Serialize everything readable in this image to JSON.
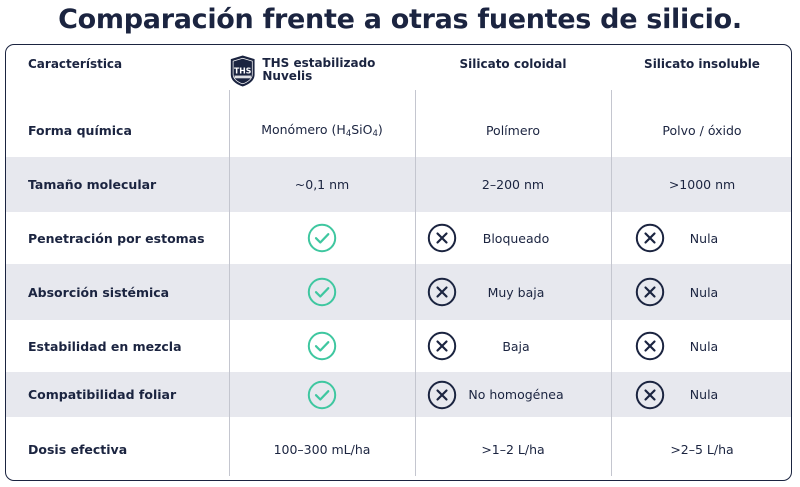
{
  "title": "Comparación frente a otras fuentes de silicio.",
  "logo_text": "THS",
  "header": {
    "feature": "Característica",
    "ths": "THS estabilizado Nuvelis",
    "colloidal": "Silicato coloidal",
    "insoluble": "Silicato insoluble"
  },
  "rows": [
    {
      "feature": "Forma química",
      "ths": "Monómero (H₄SiO₄)",
      "colloidal": "Polímero",
      "insoluble": "Polvo / óxido"
    },
    {
      "feature": "Tamaño molecular",
      "ths": "~0,1 nm",
      "colloidal": "2–200 nm",
      "insoluble": ">1000 nm"
    },
    {
      "feature": "Penetración por estomas",
      "ths_icon": "check-icon",
      "colloidal": "Bloqueado",
      "insoluble": "Nula"
    },
    {
      "feature": "Absorción sistémica",
      "ths_icon": "check-icon",
      "colloidal": "Muy baja",
      "insoluble": "Nula"
    },
    {
      "feature": "Estabilidad en mezcla",
      "ths_icon": "check-icon",
      "colloidal": "Baja",
      "insoluble": "Nula"
    },
    {
      "feature": "Compatibilidad foliar",
      "ths_icon": "check-icon",
      "colloidal": "No homogénea",
      "insoluble": "Nula"
    },
    {
      "feature": "Dosis efectiva",
      "ths": "100–300 mL/ha",
      "colloidal": ">1–2 L/ha",
      "insoluble": ">2–5 L/ha"
    }
  ],
  "colors": {
    "navy": "#1b2440",
    "check": "#3fc7a0",
    "shade": "#e7e8ee"
  }
}
